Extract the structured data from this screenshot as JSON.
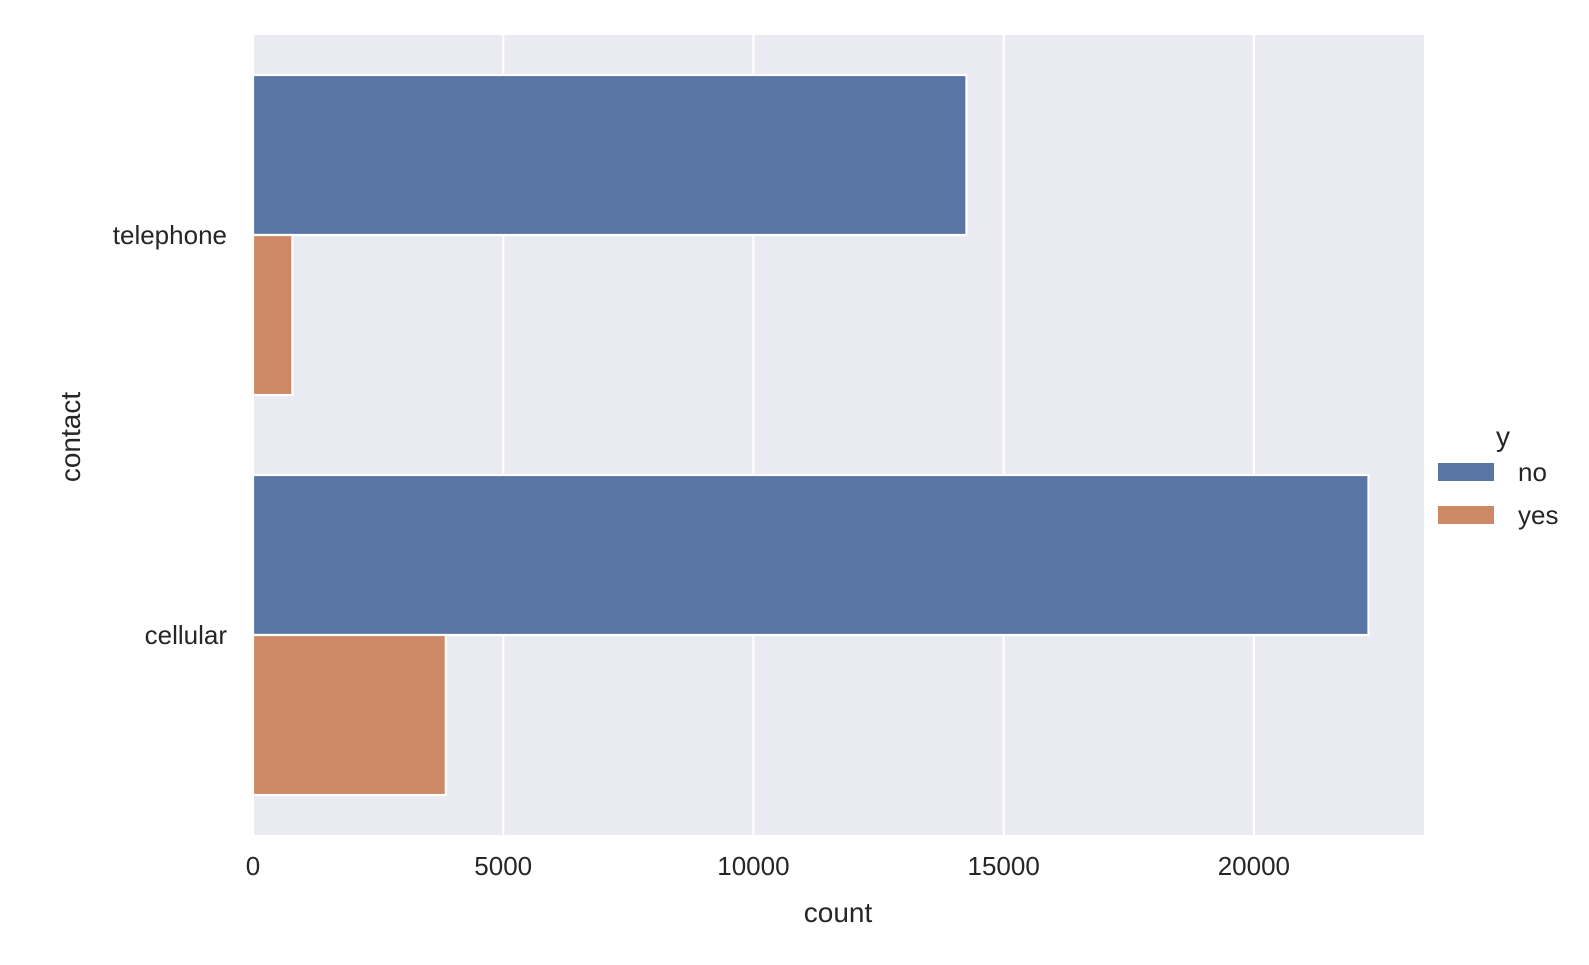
{
  "chart_data": {
    "type": "bar",
    "orientation": "horizontal",
    "categories": [
      "telephone",
      "cellular"
    ],
    "series": [
      {
        "name": "no",
        "values": [
          14257,
          22291
        ],
        "color": "#5975a4"
      },
      {
        "name": "yes",
        "values": [
          787,
          3853
        ],
        "color": "#cc8963"
      }
    ],
    "xlabel": "count",
    "ylabel": "contact",
    "xlim": [
      0,
      23400
    ],
    "xticks": [
      0,
      5000,
      10000,
      15000,
      20000
    ],
    "grid": true,
    "background": "#eaeaf2",
    "legend": {
      "title": "y",
      "placement": "outside-right"
    }
  }
}
